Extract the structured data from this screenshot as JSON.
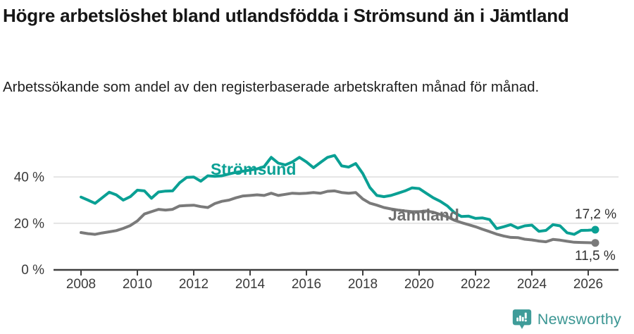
{
  "title": "Högre arbetslöshet bland utlandsfödda i Strömsund än i Jämtland",
  "subtitle": "Arbetssökande som andel av den registerbaserade arbetskraften månad för månad.",
  "footer": {
    "brand": "Newsworthy",
    "logo_color": "#3f9c99"
  },
  "chart_data": {
    "type": "line",
    "title": "Högre arbetslöshet bland utlandsfödda i Strömsund än i Jämtland",
    "subtitle": "Arbetssökande som andel av den registerbaserade arbetskraften månad för månad.",
    "xlabel": "",
    "ylabel": "",
    "grid": "horizontal-only",
    "legend_position": "inline-labels-on-lines",
    "xlim": [
      2007,
      2027.1
    ],
    "ylim": [
      0,
      52
    ],
    "y_ticks": [
      {
        "value": 0,
        "label": "0 %"
      },
      {
        "value": 20,
        "label": "20 %"
      },
      {
        "value": 40,
        "label": "40 %"
      }
    ],
    "x_ticks": [
      {
        "value": 2008,
        "label": "2008"
      },
      {
        "value": 2010,
        "label": "2010"
      },
      {
        "value": 2012,
        "label": "2012"
      },
      {
        "value": 2014,
        "label": "2014"
      },
      {
        "value": 2016,
        "label": "2016"
      },
      {
        "value": 2018,
        "label": "2018"
      },
      {
        "value": 2020,
        "label": "2020"
      },
      {
        "value": 2022,
        "label": "2022"
      },
      {
        "value": 2024,
        "label": "2024"
      },
      {
        "value": 2026,
        "label": "2026"
      }
    ],
    "series": [
      {
        "name": "Strömsund",
        "color": "#0aa094",
        "end_label": "17,2 %",
        "end_value": 17.2,
        "x_start": 2008,
        "x_step_years": 0.25,
        "values": [
          31.3,
          30.0,
          28.6,
          31.0,
          33.4,
          32.3,
          30.0,
          31.5,
          34.3,
          34.0,
          30.8,
          33.5,
          33.9,
          34.0,
          37.5,
          39.8,
          40.0,
          38.2,
          40.5,
          40.3,
          40.5,
          41.3,
          42.0,
          42.5,
          43.0,
          43.5,
          44.5,
          48.5,
          46.0,
          45.2,
          46.5,
          48.5,
          46.5,
          44.0,
          46.3,
          48.5,
          49.3,
          44.8,
          44.3,
          45.8,
          41.5,
          35.5,
          32.0,
          31.5,
          32.0,
          33.0,
          34.0,
          35.3,
          35.0,
          33.0,
          31.0,
          29.5,
          27.5,
          24.6,
          22.9,
          23.1,
          22.1,
          22.3,
          21.6,
          17.7,
          18.5,
          19.4,
          17.9,
          18.9,
          19.2,
          16.5,
          16.9,
          19.4,
          18.9,
          15.9,
          15.2,
          16.9,
          17.0,
          17.2
        ]
      },
      {
        "name": "Jämtland",
        "color": "#7a7a7a",
        "end_label": "11,5 %",
        "end_value": 11.5,
        "x_start": 2008,
        "x_step_years": 0.25,
        "values": [
          16.0,
          15.5,
          15.2,
          15.8,
          16.3,
          16.8,
          17.8,
          19.0,
          21.0,
          24.0,
          25.0,
          26.0,
          25.7,
          26.0,
          27.5,
          27.7,
          27.8,
          27.2,
          26.8,
          28.5,
          29.5,
          30.0,
          31.0,
          31.8,
          32.0,
          32.3,
          32.0,
          33.0,
          32.0,
          32.5,
          33.0,
          32.8,
          33.0,
          33.3,
          33.0,
          33.8,
          34.0,
          33.3,
          33.0,
          33.3,
          30.5,
          28.7,
          27.8,
          26.8,
          26.2,
          25.7,
          25.3,
          25.0,
          25.0,
          25.3,
          24.8,
          23.8,
          22.8,
          21.3,
          20.3,
          19.4,
          18.5,
          17.4,
          16.4,
          15.3,
          14.5,
          13.9,
          13.8,
          13.1,
          12.8,
          12.3,
          12.0,
          13.0,
          12.7,
          12.2,
          11.8,
          11.7,
          11.6,
          11.5
        ]
      }
    ]
  }
}
